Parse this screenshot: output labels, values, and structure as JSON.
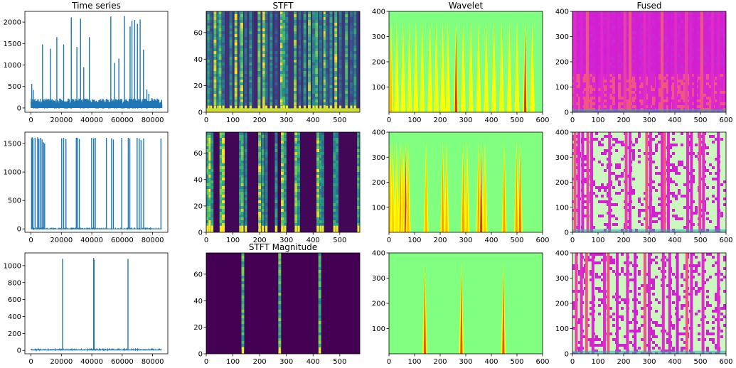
{
  "chart_data": [
    {
      "type": "line",
      "title": "Time series",
      "row": 0,
      "col": 0,
      "xlim": [
        -4000,
        90000
      ],
      "ylim": [
        -100,
        2250
      ],
      "xticks": [
        0,
        20000,
        40000,
        60000,
        80000
      ],
      "xtick_labels": [
        "0",
        "20000",
        "40000",
        "60000",
        "80000"
      ],
      "yticks": [
        0,
        500,
        1000,
        1500,
        2000
      ],
      "ytick_labels": [
        "0",
        "500",
        "1000",
        "1500",
        "2000"
      ],
      "line_color": "#1f77b4",
      "baseline": 0,
      "noise_level": 220,
      "noise_density": 0.85,
      "spikes": [
        [
          500,
          560
        ],
        [
          1500,
          420
        ],
        [
          7600,
          1480
        ],
        [
          12800,
          1380
        ],
        [
          17000,
          1650
        ],
        [
          21500,
          1480
        ],
        [
          26500,
          2110
        ],
        [
          30200,
          1420
        ],
        [
          32600,
          2080
        ],
        [
          34700,
          950
        ],
        [
          38400,
          1650
        ],
        [
          52500,
          2130
        ],
        [
          55000,
          1050
        ],
        [
          57800,
          1150
        ],
        [
          61500,
          2140
        ],
        [
          65200,
          1900
        ],
        [
          66400,
          2030
        ],
        [
          68200,
          2050
        ],
        [
          70000,
          1960
        ],
        [
          71800,
          2060
        ],
        [
          74000,
          1360
        ],
        [
          76200,
          430
        ],
        [
          77500,
          330
        ],
        [
          79500,
          230
        ],
        [
          83000,
          220
        ]
      ],
      "x_end": 86000
    },
    {
      "type": "heatmap",
      "title": "STFT",
      "row": 0,
      "col": 1,
      "colormap": "viridis",
      "xlim": [
        0,
        575
      ],
      "ylim": [
        0,
        76
      ],
      "xticks": [
        0,
        100,
        200,
        300,
        400,
        500
      ],
      "xtick_labels": [
        "0",
        "100",
        "200",
        "300",
        "400",
        "500"
      ],
      "yticks": [
        0,
        20,
        40,
        60
      ],
      "ytick_labels": [
        "0",
        "20",
        "40",
        "60"
      ],
      "background": 0.08,
      "bottom_band": 0.92,
      "stripes": [
        [
          9,
          0.6
        ],
        [
          18,
          0.35
        ],
        [
          33,
          0.9
        ],
        [
          45,
          0.45
        ],
        [
          52,
          0.75
        ],
        [
          64,
          0.4
        ],
        [
          92,
          0.55
        ],
        [
          111,
          0.95
        ],
        [
          128,
          0.45
        ],
        [
          133,
          0.9
        ],
        [
          148,
          0.35
        ],
        [
          166,
          0.55
        ],
        [
          198,
          0.8
        ],
        [
          216,
          0.95
        ],
        [
          225,
          0.4
        ],
        [
          243,
          0.55
        ],
        [
          262,
          0.3
        ],
        [
          282,
          0.9
        ],
        [
          291,
          0.65
        ],
        [
          302,
          0.45
        ],
        [
          333,
          0.85
        ],
        [
          350,
          0.35
        ],
        [
          369,
          0.6
        ],
        [
          386,
          0.85
        ],
        [
          402,
          0.5
        ],
        [
          413,
          0.75
        ],
        [
          428,
          0.45
        ],
        [
          444,
          0.85
        ],
        [
          452,
          0.35
        ],
        [
          467,
          0.6
        ],
        [
          485,
          0.9
        ],
        [
          502,
          0.4
        ],
        [
          525,
          0.7
        ],
        [
          543,
          0.35
        ],
        [
          557,
          0.55
        ]
      ]
    },
    {
      "type": "heatmap",
      "title": "Wavelet",
      "row": 0,
      "col": 2,
      "colormap": "jet",
      "xlim": [
        0,
        600
      ],
      "ylim": [
        0,
        400
      ],
      "xticks": [
        0,
        100,
        200,
        300,
        400,
        500,
        600
      ],
      "xtick_labels": [
        "0",
        "100",
        "200",
        "300",
        "400",
        "500",
        "600"
      ],
      "yticks": [
        100,
        200,
        300,
        400
      ],
      "ytick_labels": [
        "100",
        "200",
        "300",
        "400"
      ],
      "background": 0.58,
      "stripes": [
        [
          8,
          0.82
        ],
        [
          30,
          0.74
        ],
        [
          55,
          0.74
        ],
        [
          80,
          0.72
        ],
        [
          105,
          0.74
        ],
        [
          130,
          0.72
        ],
        [
          160,
          0.74
        ],
        [
          185,
          0.72
        ],
        [
          210,
          0.74
        ],
        [
          230,
          0.72
        ],
        [
          262,
          0.95
        ],
        [
          290,
          0.74
        ],
        [
          320,
          0.72
        ],
        [
          350,
          0.74
        ],
        [
          380,
          0.72
        ],
        [
          410,
          0.74
        ],
        [
          440,
          0.72
        ],
        [
          470,
          0.74
        ],
        [
          500,
          0.72
        ],
        [
          532,
          0.95
        ],
        [
          560,
          0.74
        ]
      ]
    },
    {
      "type": "heatmap",
      "title": "Fused",
      "row": 0,
      "col": 3,
      "colormap": "fused",
      "xlim": [
        0,
        600
      ],
      "ylim": [
        0,
        400
      ],
      "xticks": [
        0,
        100,
        200,
        300,
        400,
        500,
        600
      ],
      "xtick_labels": [
        "0",
        "100",
        "200",
        "300",
        "400",
        "500",
        "600"
      ],
      "yticks": [
        0,
        100,
        200,
        300,
        400
      ],
      "ytick_labels": [
        "0",
        "100",
        "200",
        "300",
        "400"
      ],
      "background": 0.5,
      "stripes": [
        [
          10,
          0.8
        ],
        [
          35,
          0.7
        ],
        [
          58,
          0.9
        ],
        [
          95,
          0.6
        ],
        [
          115,
          0.8
        ],
        [
          140,
          0.7
        ],
        [
          172,
          0.6
        ],
        [
          205,
          0.85
        ],
        [
          225,
          0.9
        ],
        [
          255,
          0.6
        ],
        [
          282,
          0.8
        ],
        [
          300,
          0.7
        ],
        [
          330,
          0.6
        ],
        [
          350,
          0.9
        ],
        [
          380,
          0.6
        ],
        [
          403,
          0.8
        ],
        [
          445,
          0.85
        ],
        [
          462,
          0.7
        ],
        [
          480,
          0.6
        ],
        [
          505,
          0.9
        ],
        [
          547,
          0.8
        ],
        [
          570,
          0.7
        ]
      ]
    },
    {
      "type": "line",
      "title": "",
      "row": 1,
      "col": 0,
      "xlim": [
        -4000,
        90000
      ],
      "ylim": [
        -60,
        1700
      ],
      "xticks": [
        0,
        20000,
        40000,
        60000,
        80000
      ],
      "xtick_labels": [
        "0",
        "20000",
        "40000",
        "60000",
        "80000"
      ],
      "yticks": [
        0,
        500,
        1000,
        1500
      ],
      "ytick_labels": [
        "0",
        "500",
        "1000",
        "1500"
      ],
      "line_color": "#1f77b4",
      "baseline": 0,
      "noise_level": 8,
      "noise_density": 0.3,
      "spikes": [
        [
          400,
          1590
        ],
        [
          800,
          1610
        ],
        [
          1300,
          1590
        ],
        [
          2700,
          1600
        ],
        [
          4400,
          1610
        ],
        [
          5200,
          1580
        ],
        [
          6300,
          1600
        ],
        [
          7300,
          1570
        ],
        [
          8300,
          1520
        ],
        [
          9000,
          1500
        ],
        [
          20200,
          1590
        ],
        [
          21500,
          1600
        ],
        [
          23000,
          1580
        ],
        [
          29800,
          1600
        ],
        [
          30700,
          1600
        ],
        [
          31800,
          1580
        ],
        [
          39900,
          1600
        ],
        [
          41200,
          1590
        ],
        [
          42300,
          1600
        ],
        [
          49600,
          1600
        ],
        [
          53000,
          1590
        ],
        [
          54200,
          1570
        ],
        [
          59700,
          1600
        ],
        [
          64000,
          1600
        ],
        [
          65000,
          1590
        ],
        [
          69800,
          1600
        ],
        [
          71200,
          1590
        ],
        [
          72400,
          1560
        ],
        [
          74100,
          1590
        ],
        [
          85500,
          1590
        ]
      ],
      "x_end": 86000
    },
    {
      "type": "heatmap",
      "title": "",
      "row": 1,
      "col": 1,
      "colormap": "viridis",
      "xlim": [
        0,
        575
      ],
      "ylim": [
        0,
        76
      ],
      "xticks": [
        0,
        100,
        200,
        300,
        400,
        500
      ],
      "xtick_labels": [
        "0",
        "100",
        "200",
        "300",
        "400",
        "500"
      ],
      "yticks": [
        0,
        20,
        40,
        60
      ],
      "ytick_labels": [
        "0",
        "20",
        "40",
        "60"
      ],
      "background": 0.02,
      "bottom_band": 0.0,
      "stripes": [
        [
          5,
          0.7
        ],
        [
          14,
          0.95
        ],
        [
          22,
          0.6
        ],
        [
          55,
          0.75
        ],
        [
          64,
          0.95
        ],
        [
          128,
          0.6
        ],
        [
          135,
          0.8
        ],
        [
          148,
          0.5
        ],
        [
          200,
          0.9
        ],
        [
          212,
          0.65
        ],
        [
          225,
          0.45
        ],
        [
          262,
          0.55
        ],
        [
          285,
          0.95
        ],
        [
          295,
          0.6
        ],
        [
          336,
          0.85
        ],
        [
          346,
          0.6
        ],
        [
          418,
          0.9
        ],
        [
          429,
          0.6
        ],
        [
          436,
          0.5
        ],
        [
          480,
          0.6
        ],
        [
          490,
          0.55
        ],
        [
          570,
          0.7
        ]
      ]
    },
    {
      "type": "heatmap",
      "title": "",
      "row": 1,
      "col": 2,
      "colormap": "jet",
      "xlim": [
        0,
        600
      ],
      "ylim": [
        0,
        400
      ],
      "xticks": [
        0,
        100,
        200,
        300,
        400,
        500,
        600
      ],
      "xtick_labels": [
        "0",
        "100",
        "200",
        "300",
        "400",
        "500",
        "600"
      ],
      "yticks": [
        100,
        200,
        300,
        400
      ],
      "ytick_labels": [
        "100",
        "200",
        "300",
        "400"
      ],
      "background": 0.58,
      "stripes": [
        [
          5,
          0.8
        ],
        [
          15,
          0.8
        ],
        [
          30,
          0.78
        ],
        [
          45,
          0.85
        ],
        [
          55,
          0.8
        ],
        [
          65,
          0.95
        ],
        [
          75,
          0.82
        ],
        [
          145,
          0.82
        ],
        [
          210,
          0.85
        ],
        [
          225,
          0.82
        ],
        [
          290,
          0.85
        ],
        [
          305,
          0.8
        ],
        [
          350,
          0.85
        ],
        [
          360,
          0.95
        ],
        [
          375,
          0.8
        ],
        [
          450,
          0.85
        ],
        [
          498,
          0.85
        ],
        [
          512,
          0.9
        ]
      ]
    },
    {
      "type": "heatmap",
      "title": "",
      "row": 1,
      "col": 3,
      "colormap": "fused",
      "xlim": [
        0,
        600
      ],
      "ylim": [
        0,
        400
      ],
      "xticks": [
        0,
        100,
        200,
        300,
        400,
        500,
        600
      ],
      "xtick_labels": [
        "0",
        "100",
        "200",
        "300",
        "400",
        "500",
        "600"
      ],
      "yticks": [
        0,
        100,
        200,
        300,
        400
      ],
      "ytick_labels": [
        "0",
        "100",
        "200",
        "300",
        "400"
      ],
      "background": 0.2,
      "stripes": [
        [
          10,
          0.9
        ],
        [
          25,
          0.8
        ],
        [
          40,
          0.7
        ],
        [
          60,
          0.85
        ],
        [
          75,
          0.75
        ],
        [
          145,
          0.8
        ],
        [
          210,
          0.85
        ],
        [
          225,
          0.7
        ],
        [
          290,
          0.9
        ],
        [
          305,
          0.75
        ],
        [
          350,
          0.8
        ],
        [
          360,
          0.9
        ],
        [
          375,
          0.7
        ],
        [
          450,
          0.8
        ],
        [
          465,
          0.7
        ],
        [
          498,
          0.85
        ],
        [
          512,
          0.8
        ],
        [
          570,
          0.6
        ]
      ]
    },
    {
      "type": "line",
      "title": "",
      "row": 2,
      "col": 0,
      "xlim": [
        -4000,
        90000
      ],
      "ylim": [
        -40,
        1150
      ],
      "xticks": [
        0,
        20000,
        40000,
        60000,
        80000
      ],
      "xtick_labels": [
        "0",
        "20000",
        "40000",
        "60000",
        "80000"
      ],
      "yticks": [
        0,
        200,
        400,
        600,
        800,
        1000
      ],
      "ytick_labels": [
        "0",
        "200",
        "400",
        "600",
        "800",
        "1000"
      ],
      "line_color": "#1f77b4",
      "baseline": 5,
      "noise_level": 10,
      "noise_density": 0.35,
      "spikes": [
        [
          20800,
          1080
        ],
        [
          41200,
          1090
        ],
        [
          41500,
          1070
        ],
        [
          63800,
          1080
        ]
      ],
      "x_end": 86000
    },
    {
      "type": "heatmap",
      "title": "STFT Magnitude",
      "row": 2,
      "col": 1,
      "colormap": "viridis",
      "xlim": [
        0,
        575
      ],
      "ylim": [
        0,
        76
      ],
      "xticks": [
        0,
        100,
        200,
        300,
        400,
        500
      ],
      "xtick_labels": [
        "0",
        "100",
        "200",
        "300",
        "400",
        "500"
      ],
      "yticks": [
        0,
        20,
        40,
        60
      ],
      "ytick_labels": [
        "0",
        "20",
        "40",
        "60"
      ],
      "background": 0.0,
      "bottom_band": 0.0,
      "stripes": [
        [
          137,
          0.75
        ],
        [
          275,
          0.75
        ],
        [
          425,
          0.75
        ]
      ]
    },
    {
      "type": "heatmap",
      "title": "",
      "row": 2,
      "col": 2,
      "colormap": "jet",
      "xlim": [
        0,
        600
      ],
      "ylim": [
        0,
        400
      ],
      "xticks": [
        0,
        100,
        200,
        300,
        400,
        500,
        600
      ],
      "xtick_labels": [
        "0",
        "100",
        "200",
        "300",
        "400",
        "500",
        "600"
      ],
      "yticks": [
        100,
        200,
        300,
        400
      ],
      "ytick_labels": [
        "100",
        "200",
        "300",
        "400"
      ],
      "background": 0.58,
      "stripes": [
        [
          140,
          0.92
        ],
        [
          283,
          0.92
        ],
        [
          447,
          0.92
        ]
      ]
    },
    {
      "type": "heatmap",
      "title": "",
      "row": 2,
      "col": 3,
      "colormap": "fused",
      "xlim": [
        0,
        600
      ],
      "ylim": [
        0,
        400
      ],
      "xticks": [
        0,
        100,
        200,
        300,
        400,
        500,
        600
      ],
      "xtick_labels": [
        "0",
        "100",
        "200",
        "300",
        "400",
        "500",
        "600"
      ],
      "yticks": [
        0,
        100,
        200,
        300,
        400
      ],
      "ytick_labels": [
        "0",
        "100",
        "200",
        "300",
        "400"
      ],
      "background": 0.2,
      "stripes": [
        [
          15,
          0.85
        ],
        [
          35,
          0.8
        ],
        [
          55,
          0.9
        ],
        [
          80,
          0.7
        ],
        [
          125,
          0.8
        ],
        [
          140,
          0.9
        ],
        [
          175,
          0.7
        ],
        [
          215,
          0.8
        ],
        [
          245,
          0.6
        ],
        [
          283,
          0.9
        ],
        [
          300,
          0.7
        ],
        [
          355,
          0.8
        ],
        [
          380,
          0.7
        ],
        [
          410,
          0.6
        ],
        [
          447,
          0.9
        ],
        [
          465,
          0.7
        ],
        [
          510,
          0.8
        ],
        [
          570,
          0.8
        ]
      ]
    }
  ],
  "colors": {
    "line": "#1f77b4",
    "axes": "#000000",
    "viridis_low": "#440154",
    "viridis_high": "#fde725",
    "jet_background": "#80ff80",
    "fused_magenta": "#d21fd2",
    "fused_light": "#cdf7c0"
  }
}
